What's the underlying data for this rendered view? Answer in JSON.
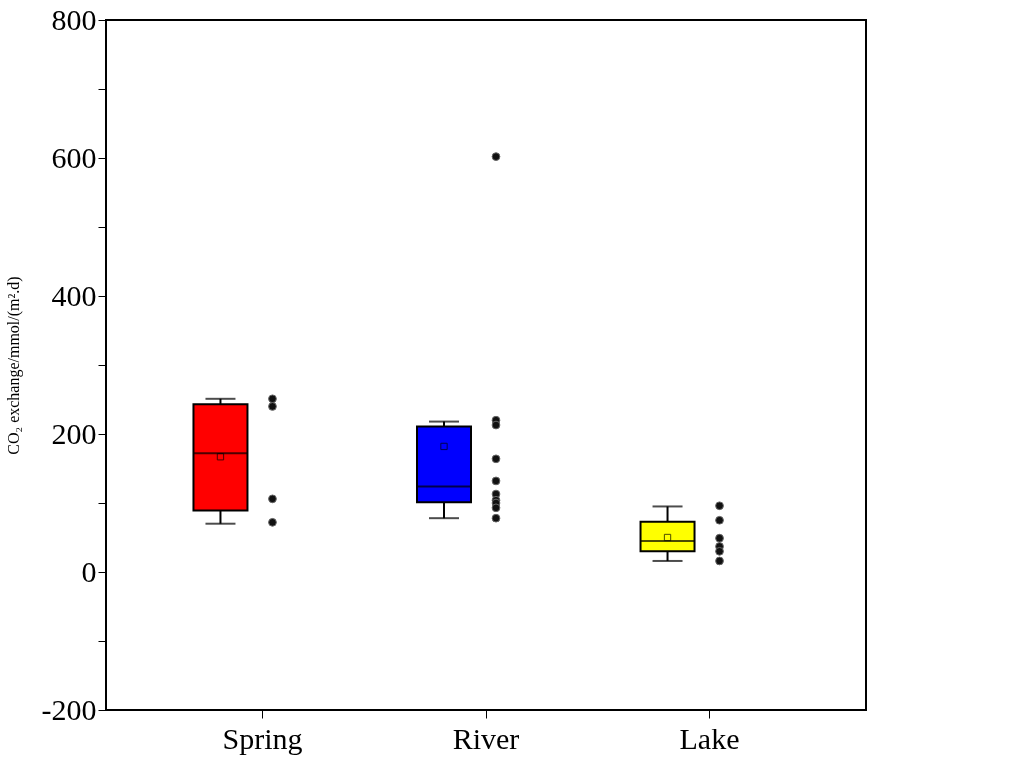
{
  "chart_data": {
    "type": "box",
    "ylabel": "CO₂ exchange/mmol/(m².d)",
    "categories": [
      "Spring",
      "River",
      "Lake"
    ],
    "colors": [
      "#ff0000",
      "#0000ff",
      "#ffff00"
    ],
    "boxes": [
      {
        "low": 70,
        "q1": 89,
        "median": 172,
        "q3": 243,
        "high": 251,
        "mean": 167
      },
      {
        "low": 78,
        "q1": 101,
        "median": 124,
        "q3": 211,
        "high": 218,
        "mean": 182
      },
      {
        "low": 16,
        "q1": 30,
        "median": 45,
        "q3": 73,
        "high": 95,
        "mean": 50
      }
    ],
    "series": [
      {
        "type": "scatter",
        "color": "#111111",
        "x": [
          "Spring",
          "Spring",
          "Spring",
          "Spring"
        ],
        "values": [
          251,
          240,
          106,
          72
        ]
      },
      {
        "type": "scatter",
        "color": "#111111",
        "x": [
          "River",
          "River",
          "River",
          "River",
          "River",
          "River",
          "River",
          "River",
          "River",
          "River"
        ],
        "values": [
          602,
          220,
          213,
          164,
          132,
          113,
          104,
          100,
          93,
          78
        ]
      },
      {
        "type": "scatter",
        "color": "#111111",
        "x": [
          "Lake",
          "Lake",
          "Lake",
          "Lake",
          "Lake",
          "Lake"
        ],
        "values": [
          96,
          75,
          49,
          37,
          30,
          16
        ]
      }
    ],
    "ylim": [
      -200,
      800
    ],
    "yticks": [
      -200,
      {
        "value": -100,
        "label": null
      },
      0,
      {
        "value": 100,
        "label": null
      },
      200,
      {
        "value": 300,
        "label": null
      },
      400,
      {
        "value": 500,
        "label": null
      },
      600,
      {
        "value": 700,
        "label": null
      },
      800
    ],
    "marker": "circle",
    "grid": false
  }
}
